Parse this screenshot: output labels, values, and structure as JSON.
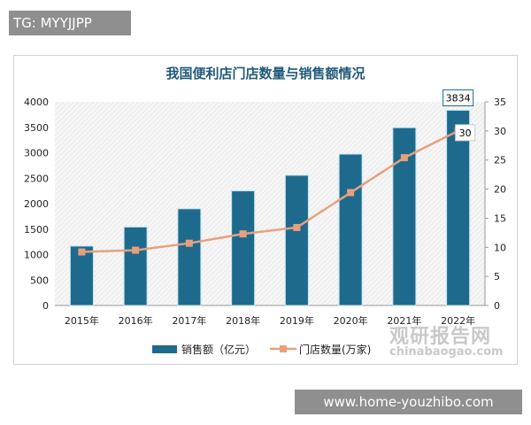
{
  "watermark_top": "TG: MYYJJPP",
  "watermark_bottom": "www.home-youzhibo.com",
  "logo": {
    "cn": "观研报告网",
    "en": "chinabaogao.com"
  },
  "chart_data": {
    "type": "bar+line",
    "title": "我国便利店门店数量与销售额情况",
    "categories": [
      "2015年",
      "2016年",
      "2017年",
      "2018年",
      "2019年",
      "2020年",
      "2021年",
      "2022年"
    ],
    "series": [
      {
        "name": "销售额（亿元）",
        "type": "bar",
        "axis": "left",
        "color": "#1e6a8d",
        "values": [
          1166,
          1541,
          1899,
          2251,
          2557,
          2973,
          3492,
          3834
        ]
      },
      {
        "name": "门店数量(万家)",
        "type": "line",
        "axis": "right",
        "color": "#e8a07c",
        "values": [
          9.2,
          9.5,
          10.7,
          12.3,
          13.4,
          19.4,
          25.4,
          30
        ]
      }
    ],
    "data_labels": {
      "bar_last": "3834",
      "line_last": "30"
    },
    "ylim_left": [
      0,
      4000
    ],
    "yticks_left": [
      0,
      500,
      1000,
      1500,
      2000,
      2500,
      3000,
      3500,
      4000
    ],
    "ylim_right": [
      0,
      35
    ],
    "yticks_right": [
      0,
      5,
      10,
      15,
      20,
      25,
      30,
      35
    ],
    "legend": "bottom"
  }
}
